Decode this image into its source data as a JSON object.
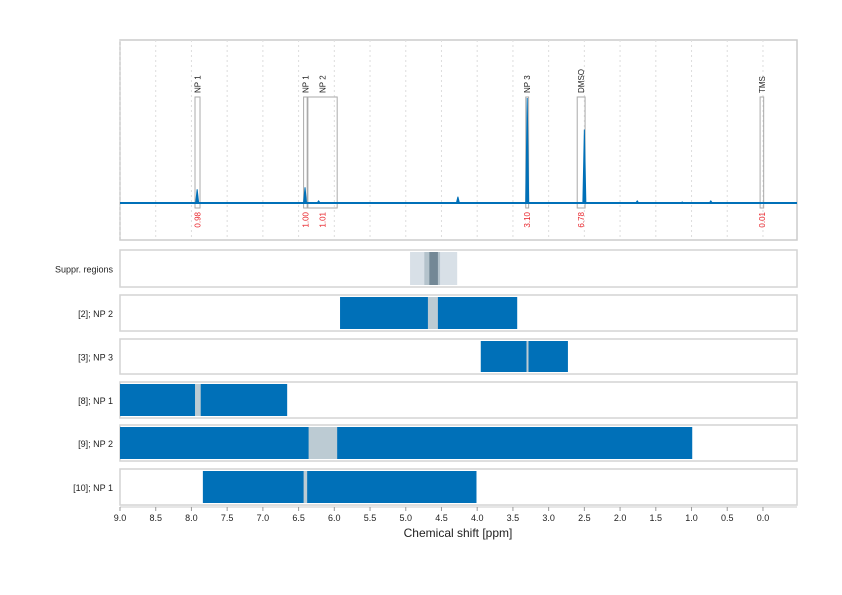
{
  "chart_data": [
    {
      "type": "line",
      "title": "",
      "xlim": [
        9.0,
        -0.48
      ],
      "x_reversed": true,
      "grid": true,
      "line_color": "#0070b8",
      "peaks": [
        {
          "ppm": 7.92,
          "rel_intensity": 0.13
        },
        {
          "ppm": 6.41,
          "rel_intensity": 0.15
        },
        {
          "ppm": 6.22,
          "rel_intensity": 0.02
        },
        {
          "ppm": 4.27,
          "rel_intensity": 0.06
        },
        {
          "ppm": 3.3,
          "rel_intensity": 1.0
        },
        {
          "ppm": 2.5,
          "rel_intensity": 0.7
        },
        {
          "ppm": 1.76,
          "rel_intensity": 0.02
        },
        {
          "ppm": 1.13,
          "rel_intensity": 0.01
        },
        {
          "ppm": 0.73,
          "rel_intensity": 0.02
        }
      ],
      "integral_regions": [
        {
          "label": "NP 1",
          "from": 7.95,
          "to": 7.88,
          "integral": "0.98"
        },
        {
          "label": "NP 1",
          "from": 6.43,
          "to": 6.38,
          "integral": "1.00"
        },
        {
          "label": "NP 2",
          "from": 6.37,
          "to": 5.96,
          "integral": "1.01"
        },
        {
          "label": "NP 3",
          "from": 3.32,
          "to": 3.28,
          "integral": "3.10"
        },
        {
          "label": "DMSO",
          "from": 2.6,
          "to": 2.49,
          "integral": "6.78"
        },
        {
          "label": "TMS",
          "from": 0.04,
          "to": -0.01,
          "integral": "0.01"
        }
      ]
    },
    {
      "type": "bar",
      "orientation": "horizontal-range",
      "xlabel": "Chemical shift [ppm]",
      "xlim": [
        9.0,
        -0.48
      ],
      "x_reversed": true,
      "xticks": [
        "9.0",
        "8.5",
        "8.0",
        "7.5",
        "7.0",
        "6.5",
        "6.0",
        "5.5",
        "5.0",
        "4.5",
        "4.0",
        "3.5",
        "3.0",
        "2.5",
        "2.0",
        "1.5",
        "1.0",
        "0.5",
        "0.0"
      ],
      "colors": {
        "range": "#0070b8",
        "excluded": "#bccbd3",
        "suppr_light": "#d8e0e7",
        "suppr_mid": "#b4c3cc",
        "suppr_dark": "#738896"
      },
      "rows": [
        {
          "label": "Suppr. regions",
          "suppressed": [
            [
              4.94,
              4.28
            ],
            [
              4.74,
              4.52
            ],
            [
              4.67,
              4.55
            ]
          ]
        },
        {
          "label": "[2]; NP 2",
          "range": [
            5.92,
            3.44
          ],
          "excluded": [
            4.69,
            4.55
          ]
        },
        {
          "label": "[3]; NP 3",
          "range": [
            3.95,
            2.73
          ],
          "excluded": [
            3.31,
            3.29
          ]
        },
        {
          "label": "[8]; NP 1",
          "range": [
            9.0,
            6.66
          ],
          "excluded": [
            7.95,
            7.87
          ]
        },
        {
          "label": "[9]; NP 2",
          "range": [
            9.0,
            0.99
          ],
          "excluded": [
            6.36,
            5.96
          ]
        },
        {
          "label": "[10]; NP 1",
          "range": [
            7.84,
            4.01
          ],
          "excluded": [
            6.43,
            6.38
          ]
        }
      ]
    }
  ]
}
